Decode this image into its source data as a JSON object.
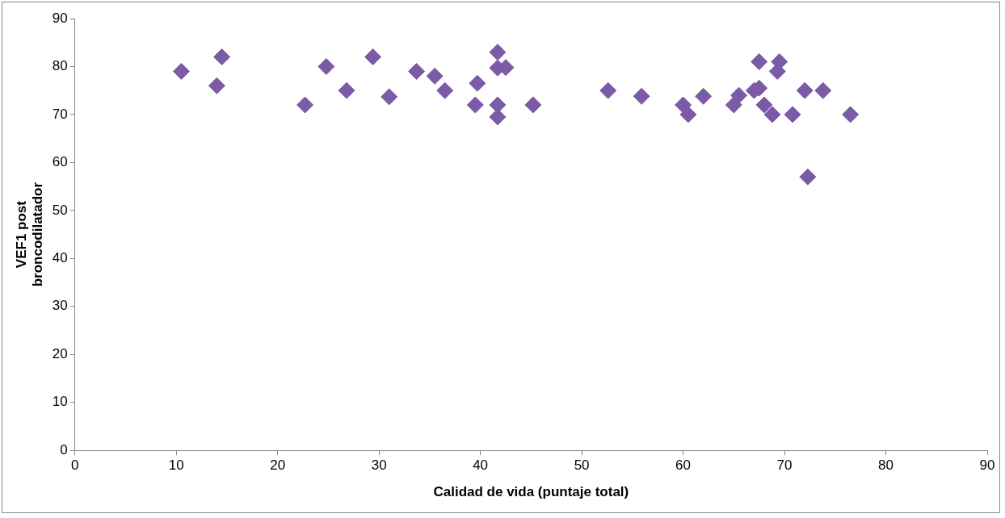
{
  "chart_data": {
    "type": "scatter",
    "xlabel": "Calidad de vida (puntaje total)",
    "ylabel": "VEF1 post broncodilatador",
    "x": [
      10.5,
      14,
      14.5,
      22.7,
      24.8,
      26.8,
      29.4,
      31,
      33.7,
      35.5,
      36.5,
      39.5,
      39.7,
      41.7,
      41.7,
      42.5,
      41.7,
      41.7,
      45.2,
      52.6,
      55.9,
      60,
      60.5,
      62,
      65,
      65.5,
      67,
      67.5,
      67.5,
      68,
      68.8,
      69.3,
      69.5,
      70.8,
      72,
      73.8,
      72.3,
      76.5
    ],
    "series": [
      {
        "color": "#7b5ba6",
        "values": [
          79,
          76,
          82,
          72,
          80,
          75,
          82,
          73.7,
          79,
          78,
          75,
          72,
          76.5,
          83,
          79.7,
          79.8,
          72,
          69.5,
          72,
          75,
          73.8,
          72,
          70,
          73.8,
          72,
          74,
          75,
          75.5,
          81,
          72,
          70,
          79,
          81,
          70,
          75,
          75,
          57,
          70
        ]
      }
    ],
    "xlim": [
      0,
      90
    ],
    "xticks": [
      0,
      10,
      20,
      30,
      40,
      50,
      60,
      70,
      80,
      90
    ],
    "ylim": [
      0,
      90
    ],
    "yticks": [
      0,
      10,
      20,
      30,
      40,
      50,
      60,
      70,
      80,
      90
    ],
    "grid": false,
    "legend": false,
    "marker": "diamond"
  }
}
